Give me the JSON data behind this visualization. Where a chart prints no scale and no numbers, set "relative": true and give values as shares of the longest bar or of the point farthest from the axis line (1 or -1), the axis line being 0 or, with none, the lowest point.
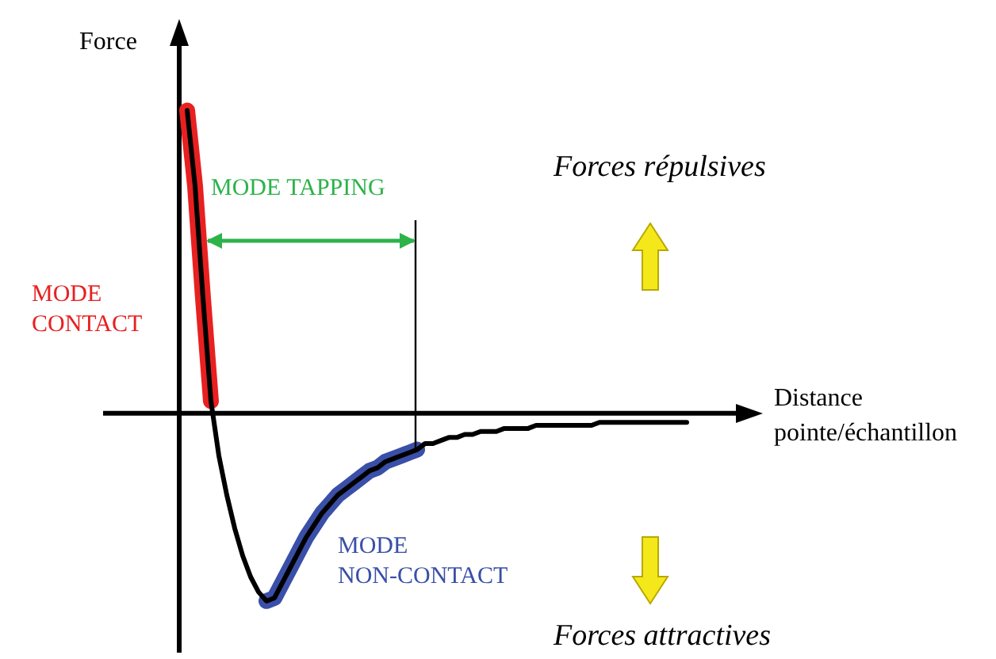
{
  "chart_data": {
    "type": "line",
    "relative": true,
    "marker": "none",
    "xlabel": "Distance pointe/échantillon",
    "ylabel": "Force",
    "annotations": [
      "MODE TAPPING",
      "Forces répulsives",
      "Forces attractives"
    ],
    "categories": [
      null,
      null,
      null,
      null,
      null,
      null,
      null,
      null,
      null,
      null,
      null,
      null,
      null,
      null,
      null,
      null,
      null,
      null,
      null,
      null,
      null,
      null,
      null,
      null,
      null,
      null,
      null,
      null,
      null,
      null,
      null,
      null,
      null,
      null,
      null,
      null,
      null,
      null,
      null,
      null,
      null,
      null,
      null,
      null,
      null,
      null,
      null,
      null,
      null,
      null,
      null,
      null,
      null,
      null,
      null,
      null,
      null,
      null,
      null,
      null,
      null,
      null,
      null,
      null,
      null,
      null,
      null,
      null,
      null,
      null,
      null,
      null
    ],
    "series": [
      {
        "color": "#000000",
        "values": [
          null,
          1,
          0.75,
          0.38,
          0.04,
          -0.14,
          -0.27,
          -0.38,
          -0.47,
          -0.54,
          -0.59,
          -0.62,
          -0.61,
          -0.56,
          -0.51,
          -0.46,
          -0.41,
          -0.37,
          -0.33,
          -0.3,
          -0.27,
          -0.25,
          -0.23,
          -0.21,
          -0.19,
          -0.18,
          -0.16,
          -0.15,
          -0.14,
          -0.13,
          -0.12,
          -0.1,
          -0.1,
          -0.09,
          -0.08,
          -0.08,
          -0.07,
          -0.07,
          -0.06,
          -0.06,
          -0.06,
          -0.05,
          -0.05,
          -0.05,
          -0.05,
          -0.04,
          -0.04,
          -0.04,
          -0.04,
          -0.04,
          -0.04,
          -0.04,
          -0.04,
          -0.03,
          -0.03,
          -0.03,
          -0.03,
          -0.03,
          -0.03,
          -0.03,
          -0.03,
          -0.03,
          -0.03,
          -0.03,
          -0.03,
          null,
          null,
          null,
          null,
          null,
          null,
          null
        ]
      },
      {
        "name": "MODE CONTACT",
        "color": "#e82020",
        "values": [
          null,
          1,
          0.75,
          0.38,
          0.04,
          null,
          null,
          null,
          null,
          null,
          null,
          null,
          null,
          null,
          null,
          null,
          null,
          null,
          null,
          null,
          null,
          null,
          null,
          null,
          null,
          null,
          null,
          null,
          null,
          null,
          null,
          null,
          null,
          null,
          null,
          null,
          null,
          null,
          null,
          null,
          null,
          null,
          null,
          null,
          null,
          null,
          null,
          null,
          null,
          null,
          null,
          null,
          null,
          null,
          null,
          null,
          null,
          null,
          null,
          null,
          null,
          null,
          null,
          null,
          null,
          null,
          null,
          null,
          null,
          null,
          null,
          null
        ]
      },
      {
        "name": "MODE NON-CONTACT",
        "color": "#3a4fa8",
        "values": [
          null,
          null,
          null,
          null,
          null,
          null,
          null,
          null,
          null,
          null,
          null,
          -0.62,
          -0.61,
          -0.56,
          -0.51,
          -0.46,
          -0.41,
          -0.37,
          -0.33,
          -0.3,
          -0.27,
          -0.25,
          -0.23,
          -0.21,
          -0.19,
          -0.18,
          -0.16,
          -0.15,
          -0.14,
          -0.13,
          -0.12,
          null,
          null,
          null,
          null,
          null,
          null,
          null,
          null,
          null,
          null,
          null,
          null,
          null,
          null,
          null,
          null,
          null,
          null,
          null,
          null,
          null,
          null,
          null,
          null,
          null,
          null,
          null,
          null,
          null,
          null,
          null,
          null,
          null,
          null,
          null,
          null,
          null,
          null,
          null,
          null,
          null
        ]
      }
    ]
  }
}
